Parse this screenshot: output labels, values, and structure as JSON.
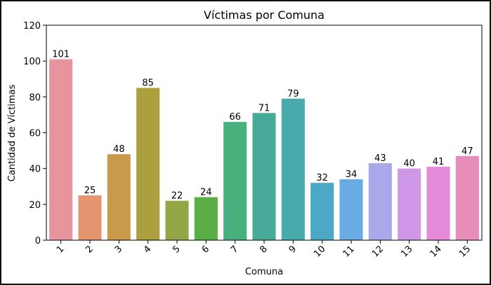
{
  "chart_data": {
    "type": "bar",
    "title": "Víctimas por Comuna",
    "xlabel": "Comuna",
    "ylabel": "Cantidad de Víctimas",
    "categories": [
      "1",
      "2",
      "3",
      "4",
      "5",
      "6",
      "7",
      "8",
      "9",
      "10",
      "11",
      "12",
      "13",
      "14",
      "15"
    ],
    "values": [
      101,
      25,
      48,
      85,
      22,
      24,
      66,
      71,
      79,
      32,
      34,
      43,
      40,
      41,
      47
    ],
    "ylim": [
      0,
      120
    ],
    "yticks": [
      0,
      20,
      40,
      60,
      80,
      100,
      120
    ],
    "grid": false,
    "legend": "none",
    "colors": [
      "#e8949e",
      "#e49570",
      "#c99a4c",
      "#ab9f3e",
      "#93a645",
      "#5aae47",
      "#48b07d",
      "#47aa98",
      "#49aaac",
      "#4ba9c5",
      "#69abe4",
      "#a9a8ea",
      "#cf98e7",
      "#e58ad9",
      "#e78dbb"
    ]
  }
}
